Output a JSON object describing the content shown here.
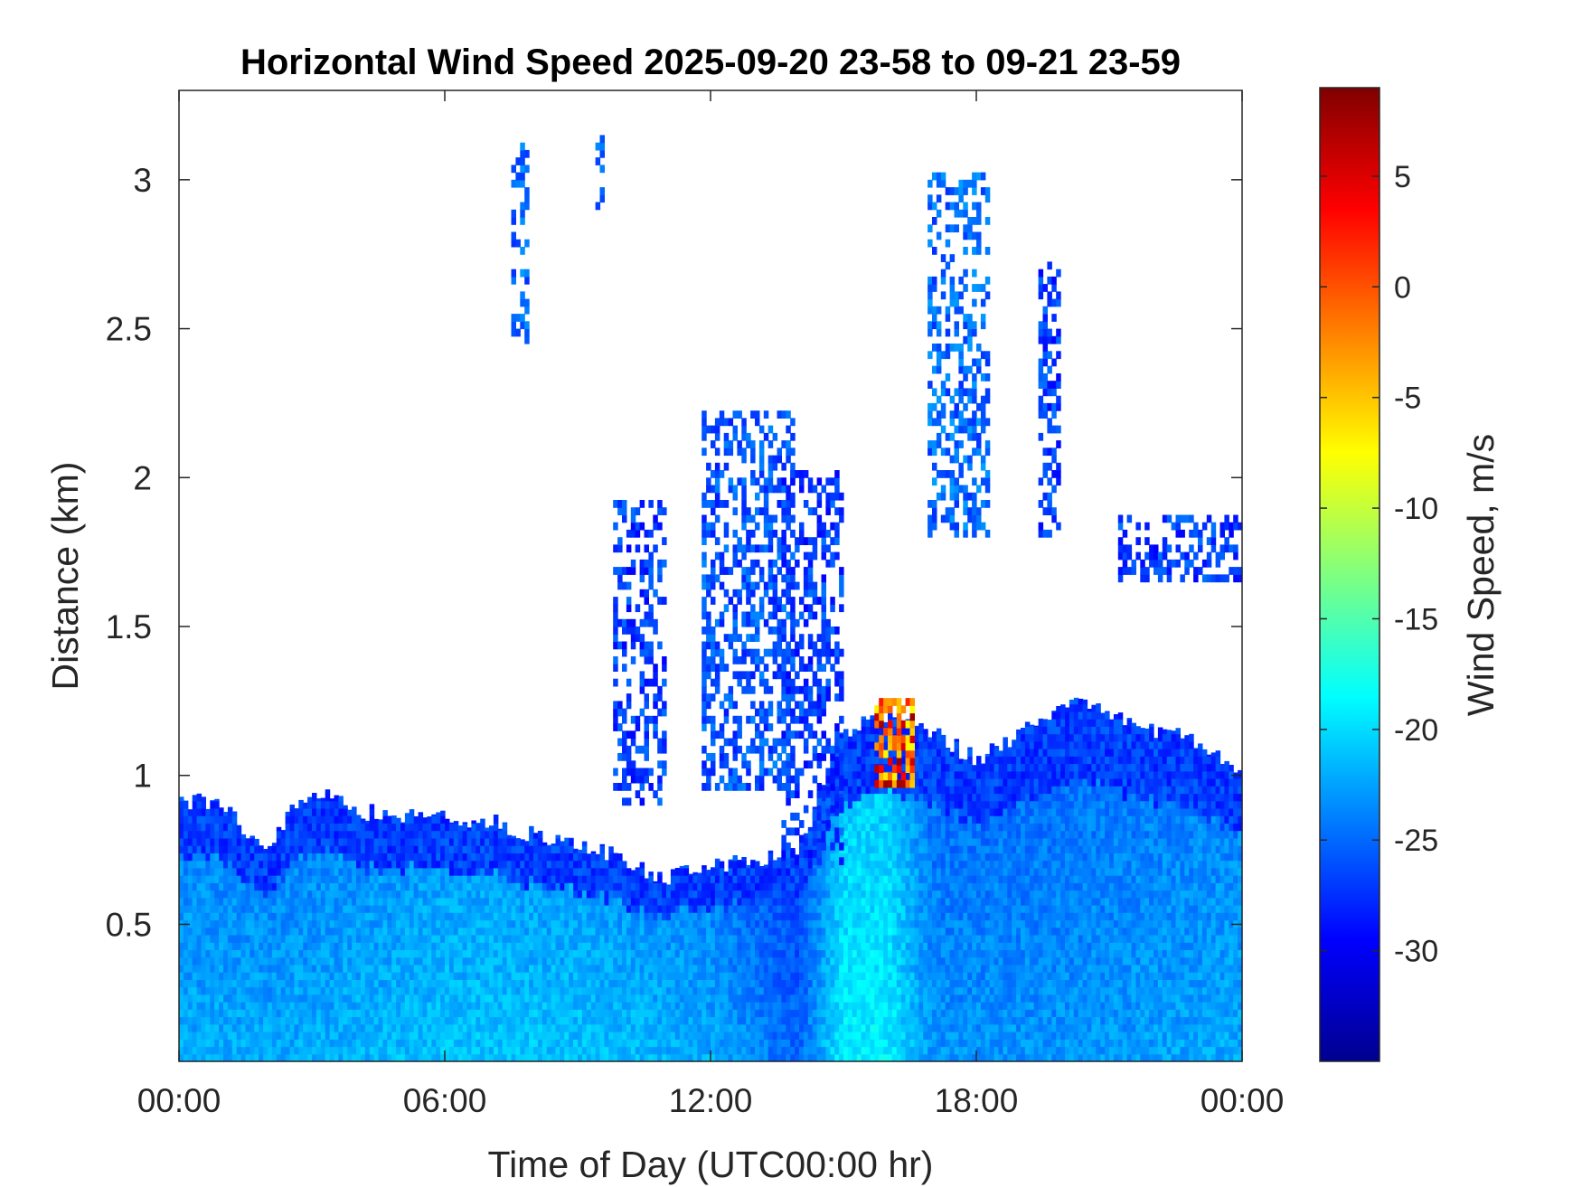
{
  "chart_data": {
    "type": "heatmap",
    "title": "Horizontal Wind Speed 2025-09-20 23-58 to 09-21 23-59",
    "xlabel": "Time of Day (UTC00:00 hr)",
    "ylabel": "Distance (km)",
    "x_units": "hours",
    "xlim": [
      0,
      24
    ],
    "ylim": [
      0.04,
      3.3
    ],
    "x_ticks": [
      0,
      6,
      12,
      18,
      24
    ],
    "x_tick_labels": [
      "00:00",
      "06:00",
      "12:00",
      "18:00",
      "00:00"
    ],
    "y_ticks": [
      0.5,
      1,
      1.5,
      2,
      2.5,
      3
    ],
    "y_tick_labels": [
      "0.5",
      "1",
      "1.5",
      "2",
      "2.5",
      "3"
    ],
    "colorbar": {
      "label": "Wind Speed, m/s",
      "colormap": "jet",
      "clim": [
        -35,
        9
      ],
      "ticks": [
        5,
        0,
        -5,
        -10,
        -15,
        -20,
        -25,
        -30
      ],
      "tick_labels": [
        "5",
        "0",
        "-5",
        "-10",
        "-15",
        "-20",
        "-25",
        "-30"
      ]
    },
    "grid": false,
    "mixing_layer_top_km": [
      [
        0,
        0.92
      ],
      [
        1,
        0.9
      ],
      [
        1.5,
        0.82
      ],
      [
        2,
        0.72
      ],
      [
        2.5,
        0.9
      ],
      [
        3,
        0.95
      ],
      [
        4,
        0.88
      ],
      [
        5,
        0.87
      ],
      [
        6,
        0.86
      ],
      [
        7,
        0.85
      ],
      [
        8,
        0.8
      ],
      [
        9,
        0.78
      ],
      [
        10,
        0.72
      ],
      [
        11,
        0.65
      ],
      [
        12,
        0.7
      ],
      [
        13,
        0.72
      ],
      [
        14,
        0.75
      ],
      [
        15,
        1.15
      ],
      [
        16,
        1.2
      ],
      [
        17,
        1.15
      ],
      [
        18,
        1.05
      ],
      [
        19,
        1.15
      ],
      [
        20,
        1.25
      ],
      [
        21,
        1.2
      ],
      [
        22,
        1.15
      ],
      [
        23,
        1.12
      ],
      [
        24,
        1.0
      ]
    ],
    "lower_layer_wind_ms": [
      [
        0,
        -22
      ],
      [
        3,
        -22
      ],
      [
        6,
        -21
      ],
      [
        9,
        -21
      ],
      [
        12,
        -22
      ],
      [
        14,
        -25
      ],
      [
        15,
        -19
      ],
      [
        16,
        -19
      ],
      [
        17,
        -23
      ],
      [
        20,
        -23
      ],
      [
        24,
        -22
      ]
    ],
    "upper_echo_wind_ms": -27,
    "positive_patch": {
      "time_range_hours": [
        15.7,
        16.6
      ],
      "height_range_km": [
        0.96,
        1.25
      ],
      "wind_ms": [
        -8,
        8
      ]
    },
    "cloud_plumes": [
      {
        "time_range_hours": [
          7.5,
          7.8
        ],
        "height_range_km": [
          2.45,
          3.1
        ],
        "wind_ms": -25
      },
      {
        "time_range_hours": [
          9.4,
          9.6
        ],
        "height_range_km": [
          2.9,
          3.15
        ],
        "wind_ms": -25
      },
      {
        "time_range_hours": [
          9.8,
          10.9
        ],
        "height_range_km": [
          0.9,
          1.9
        ],
        "wind_ms": -27
      },
      {
        "time_range_hours": [
          11.8,
          13.8
        ],
        "height_range_km": [
          0.95,
          2.2
        ],
        "wind_ms": -26
      },
      {
        "time_range_hours": [
          13.6,
          14.9
        ],
        "height_range_km": [
          0.7,
          2.0
        ],
        "wind_ms": -27
      },
      {
        "time_range_hours": [
          16.9,
          18.3
        ],
        "height_range_km": [
          1.8,
          3.0
        ],
        "wind_ms": -25
      },
      {
        "time_range_hours": [
          19.4,
          19.9
        ],
        "height_range_km": [
          1.8,
          2.7
        ],
        "wind_ms": -27
      },
      {
        "time_range_hours": [
          21.2,
          24.0
        ],
        "height_range_km": [
          1.65,
          1.85
        ],
        "wind_ms": -27
      }
    ]
  }
}
